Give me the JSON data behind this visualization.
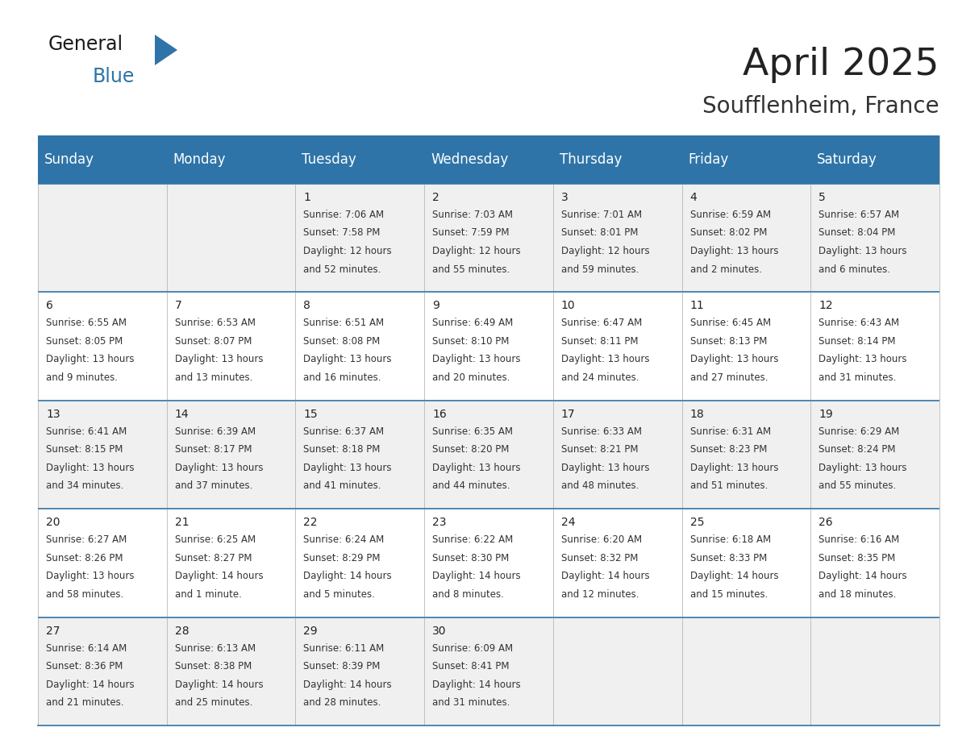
{
  "title": "April 2025",
  "subtitle": "Soufflenheim, France",
  "header_bg_color": "#2E74A8",
  "header_text_color": "#FFFFFF",
  "row0_bg": "#F0F0F0",
  "row1_bg": "#FFFFFF",
  "row2_bg": "#F0F0F0",
  "row3_bg": "#FFFFFF",
  "row4_bg": "#F0F0F0",
  "border_color": "#2E74A8",
  "cell_border_color": "#AAAAAA",
  "day_headers": [
    "Sunday",
    "Monday",
    "Tuesday",
    "Wednesday",
    "Thursday",
    "Friday",
    "Saturday"
  ],
  "title_fontsize": 34,
  "subtitle_fontsize": 20,
  "header_fontsize": 12,
  "day_num_fontsize": 10,
  "cell_fontsize": 8.5,
  "logo_general_fontsize": 17,
  "logo_blue_fontsize": 17,
  "days": [
    {
      "day": null,
      "col": 0,
      "row": 0,
      "sunrise": null,
      "sunset": null,
      "daylight_line1": null,
      "daylight_line2": null
    },
    {
      "day": null,
      "col": 1,
      "row": 0,
      "sunrise": null,
      "sunset": null,
      "daylight_line1": null,
      "daylight_line2": null
    },
    {
      "day": 1,
      "col": 2,
      "row": 0,
      "sunrise": "7:06 AM",
      "sunset": "7:58 PM",
      "daylight_line1": "Daylight: 12 hours",
      "daylight_line2": "and 52 minutes."
    },
    {
      "day": 2,
      "col": 3,
      "row": 0,
      "sunrise": "7:03 AM",
      "sunset": "7:59 PM",
      "daylight_line1": "Daylight: 12 hours",
      "daylight_line2": "and 55 minutes."
    },
    {
      "day": 3,
      "col": 4,
      "row": 0,
      "sunrise": "7:01 AM",
      "sunset": "8:01 PM",
      "daylight_line1": "Daylight: 12 hours",
      "daylight_line2": "and 59 minutes."
    },
    {
      "day": 4,
      "col": 5,
      "row": 0,
      "sunrise": "6:59 AM",
      "sunset": "8:02 PM",
      "daylight_line1": "Daylight: 13 hours",
      "daylight_line2": "and 2 minutes."
    },
    {
      "day": 5,
      "col": 6,
      "row": 0,
      "sunrise": "6:57 AM",
      "sunset": "8:04 PM",
      "daylight_line1": "Daylight: 13 hours",
      "daylight_line2": "and 6 minutes."
    },
    {
      "day": 6,
      "col": 0,
      "row": 1,
      "sunrise": "6:55 AM",
      "sunset": "8:05 PM",
      "daylight_line1": "Daylight: 13 hours",
      "daylight_line2": "and 9 minutes."
    },
    {
      "day": 7,
      "col": 1,
      "row": 1,
      "sunrise": "6:53 AM",
      "sunset": "8:07 PM",
      "daylight_line1": "Daylight: 13 hours",
      "daylight_line2": "and 13 minutes."
    },
    {
      "day": 8,
      "col": 2,
      "row": 1,
      "sunrise": "6:51 AM",
      "sunset": "8:08 PM",
      "daylight_line1": "Daylight: 13 hours",
      "daylight_line2": "and 16 minutes."
    },
    {
      "day": 9,
      "col": 3,
      "row": 1,
      "sunrise": "6:49 AM",
      "sunset": "8:10 PM",
      "daylight_line1": "Daylight: 13 hours",
      "daylight_line2": "and 20 minutes."
    },
    {
      "day": 10,
      "col": 4,
      "row": 1,
      "sunrise": "6:47 AM",
      "sunset": "8:11 PM",
      "daylight_line1": "Daylight: 13 hours",
      "daylight_line2": "and 24 minutes."
    },
    {
      "day": 11,
      "col": 5,
      "row": 1,
      "sunrise": "6:45 AM",
      "sunset": "8:13 PM",
      "daylight_line1": "Daylight: 13 hours",
      "daylight_line2": "and 27 minutes."
    },
    {
      "day": 12,
      "col": 6,
      "row": 1,
      "sunrise": "6:43 AM",
      "sunset": "8:14 PM",
      "daylight_line1": "Daylight: 13 hours",
      "daylight_line2": "and 31 minutes."
    },
    {
      "day": 13,
      "col": 0,
      "row": 2,
      "sunrise": "6:41 AM",
      "sunset": "8:15 PM",
      "daylight_line1": "Daylight: 13 hours",
      "daylight_line2": "and 34 minutes."
    },
    {
      "day": 14,
      "col": 1,
      "row": 2,
      "sunrise": "6:39 AM",
      "sunset": "8:17 PM",
      "daylight_line1": "Daylight: 13 hours",
      "daylight_line2": "and 37 minutes."
    },
    {
      "day": 15,
      "col": 2,
      "row": 2,
      "sunrise": "6:37 AM",
      "sunset": "8:18 PM",
      "daylight_line1": "Daylight: 13 hours",
      "daylight_line2": "and 41 minutes."
    },
    {
      "day": 16,
      "col": 3,
      "row": 2,
      "sunrise": "6:35 AM",
      "sunset": "8:20 PM",
      "daylight_line1": "Daylight: 13 hours",
      "daylight_line2": "and 44 minutes."
    },
    {
      "day": 17,
      "col": 4,
      "row": 2,
      "sunrise": "6:33 AM",
      "sunset": "8:21 PM",
      "daylight_line1": "Daylight: 13 hours",
      "daylight_line2": "and 48 minutes."
    },
    {
      "day": 18,
      "col": 5,
      "row": 2,
      "sunrise": "6:31 AM",
      "sunset": "8:23 PM",
      "daylight_line1": "Daylight: 13 hours",
      "daylight_line2": "and 51 minutes."
    },
    {
      "day": 19,
      "col": 6,
      "row": 2,
      "sunrise": "6:29 AM",
      "sunset": "8:24 PM",
      "daylight_line1": "Daylight: 13 hours",
      "daylight_line2": "and 55 minutes."
    },
    {
      "day": 20,
      "col": 0,
      "row": 3,
      "sunrise": "6:27 AM",
      "sunset": "8:26 PM",
      "daylight_line1": "Daylight: 13 hours",
      "daylight_line2": "and 58 minutes."
    },
    {
      "day": 21,
      "col": 1,
      "row": 3,
      "sunrise": "6:25 AM",
      "sunset": "8:27 PM",
      "daylight_line1": "Daylight: 14 hours",
      "daylight_line2": "and 1 minute."
    },
    {
      "day": 22,
      "col": 2,
      "row": 3,
      "sunrise": "6:24 AM",
      "sunset": "8:29 PM",
      "daylight_line1": "Daylight: 14 hours",
      "daylight_line2": "and 5 minutes."
    },
    {
      "day": 23,
      "col": 3,
      "row": 3,
      "sunrise": "6:22 AM",
      "sunset": "8:30 PM",
      "daylight_line1": "Daylight: 14 hours",
      "daylight_line2": "and 8 minutes."
    },
    {
      "day": 24,
      "col": 4,
      "row": 3,
      "sunrise": "6:20 AM",
      "sunset": "8:32 PM",
      "daylight_line1": "Daylight: 14 hours",
      "daylight_line2": "and 12 minutes."
    },
    {
      "day": 25,
      "col": 5,
      "row": 3,
      "sunrise": "6:18 AM",
      "sunset": "8:33 PM",
      "daylight_line1": "Daylight: 14 hours",
      "daylight_line2": "and 15 minutes."
    },
    {
      "day": 26,
      "col": 6,
      "row": 3,
      "sunrise": "6:16 AM",
      "sunset": "8:35 PM",
      "daylight_line1": "Daylight: 14 hours",
      "daylight_line2": "and 18 minutes."
    },
    {
      "day": 27,
      "col": 0,
      "row": 4,
      "sunrise": "6:14 AM",
      "sunset": "8:36 PM",
      "daylight_line1": "Daylight: 14 hours",
      "daylight_line2": "and 21 minutes."
    },
    {
      "day": 28,
      "col": 1,
      "row": 4,
      "sunrise": "6:13 AM",
      "sunset": "8:38 PM",
      "daylight_line1": "Daylight: 14 hours",
      "daylight_line2": "and 25 minutes."
    },
    {
      "day": 29,
      "col": 2,
      "row": 4,
      "sunrise": "6:11 AM",
      "sunset": "8:39 PM",
      "daylight_line1": "Daylight: 14 hours",
      "daylight_line2": "and 28 minutes."
    },
    {
      "day": 30,
      "col": 3,
      "row": 4,
      "sunrise": "6:09 AM",
      "sunset": "8:41 PM",
      "daylight_line1": "Daylight: 14 hours",
      "daylight_line2": "and 31 minutes."
    },
    {
      "day": null,
      "col": 4,
      "row": 4,
      "sunrise": null,
      "sunset": null,
      "daylight_line1": null,
      "daylight_line2": null
    },
    {
      "day": null,
      "col": 5,
      "row": 4,
      "sunrise": null,
      "sunset": null,
      "daylight_line1": null,
      "daylight_line2": null
    },
    {
      "day": null,
      "col": 6,
      "row": 4,
      "sunrise": null,
      "sunset": null,
      "daylight_line1": null,
      "daylight_line2": null
    }
  ]
}
